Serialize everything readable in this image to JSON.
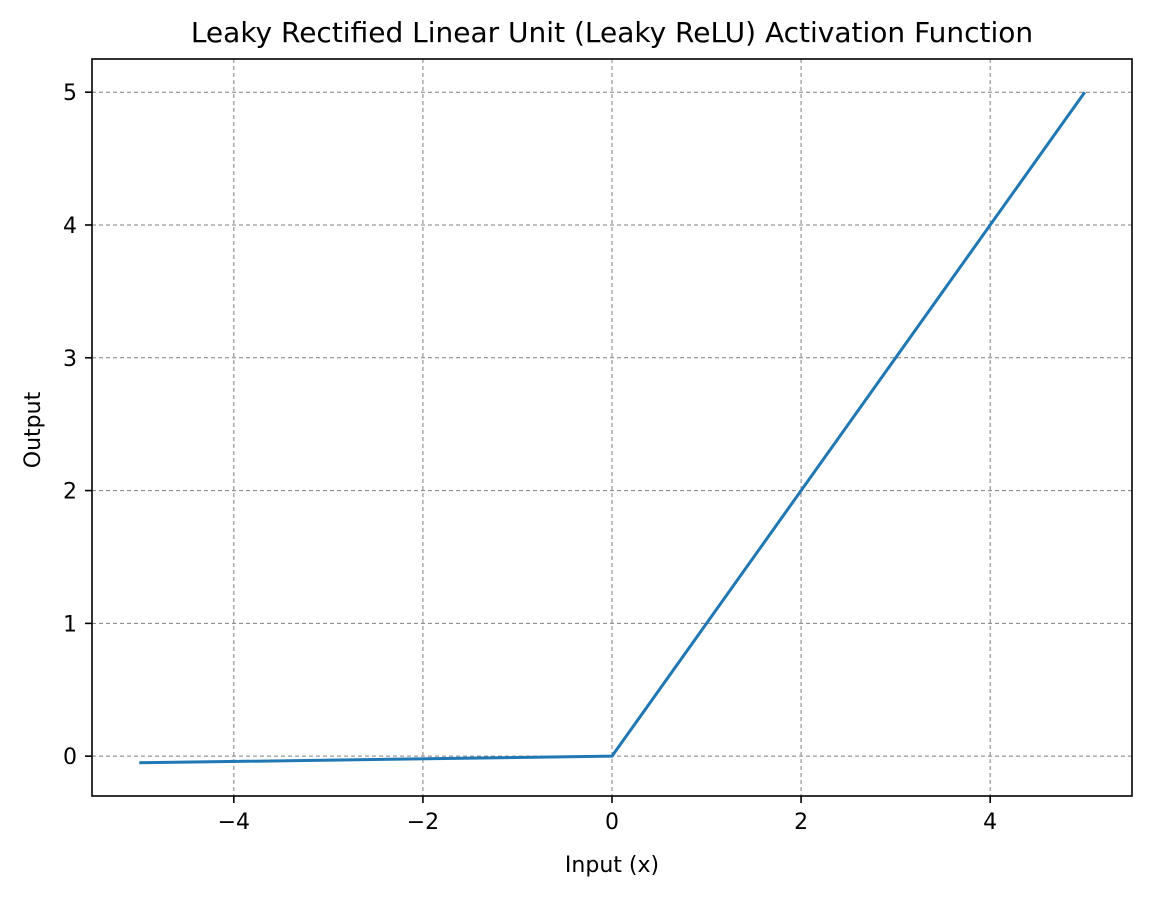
{
  "chart_data": {
    "type": "line",
    "title": "Leaky Rectified Linear Unit (Leaky ReLU) Activation Function",
    "xlabel": "Input (x)",
    "ylabel": "Output",
    "xlim": [
      -5.5,
      5.5
    ],
    "ylim": [
      -0.3,
      5.25
    ],
    "xticks": [
      -4,
      -2,
      0,
      2,
      4
    ],
    "xtick_labels": [
      "−4",
      "−2",
      "0",
      "2",
      "4"
    ],
    "yticks": [
      0,
      1,
      2,
      3,
      4,
      5
    ],
    "ytick_labels": [
      "0",
      "1",
      "2",
      "3",
      "4",
      "5"
    ],
    "grid": true,
    "grid_style": "dashed",
    "grid_color": "#808080",
    "legend": "none",
    "series": [
      {
        "color": "#1f77b4",
        "x": [
          -5,
          0,
          5
        ],
        "y": [
          -0.05,
          0,
          5
        ]
      }
    ]
  }
}
